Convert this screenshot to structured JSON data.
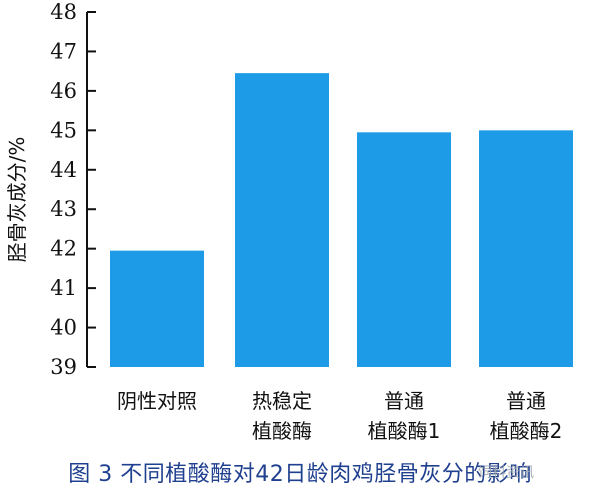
{
  "chart_data": {
    "type": "bar",
    "categories": [
      [
        "阴性对照"
      ],
      [
        "热稳定",
        "植酸酶"
      ],
      [
        "普通",
        "植酸酶1"
      ],
      [
        "普通",
        "植酸酶2"
      ]
    ],
    "values": [
      41.95,
      46.45,
      44.95,
      45.0
    ],
    "ylabel": "胫骨灰成分/%",
    "ylim": [
      39,
      48
    ],
    "yticks": [
      39,
      40,
      41,
      42,
      43,
      44,
      45,
      46,
      47,
      48
    ],
    "bar_color": "#1e9be6",
    "grid": false
  },
  "caption": "图 3  不同植酸酶对42日龄肉鸡胫骨灰分的影响",
  "watermark": "饲料资讯"
}
